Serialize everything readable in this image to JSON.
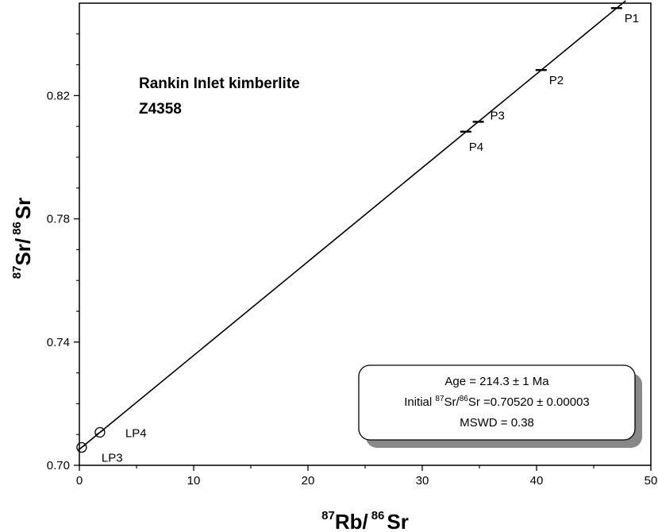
{
  "chart_data": {
    "type": "scatter",
    "title_lines": [
      "Rankin Inlet kimberlite",
      "Z4358"
    ],
    "xlabel": {
      "sup1": "87",
      "base1": "Rb/",
      "sup2": "86",
      "base2": "Sr"
    },
    "ylabel": {
      "sup1": "87",
      "base1": "Sr/",
      "sup2": "86",
      "base2": "Sr"
    },
    "xlim": [
      0,
      50
    ],
    "ylim": [
      0.7,
      0.85
    ],
    "x_ticks": [
      0,
      10,
      20,
      30,
      40,
      50
    ],
    "x_tick_labels": [
      "0",
      "10",
      "20",
      "30",
      "40",
      "50"
    ],
    "y_ticks": [
      0.7,
      0.74,
      0.78,
      0.82
    ],
    "y_tick_labels": [
      "0.70",
      "0.74",
      "0.78",
      "0.82"
    ],
    "grid": false,
    "isochron": {
      "x": [
        0,
        47.8
      ],
      "y": [
        0.7052,
        0.8508
      ]
    },
    "points": [
      {
        "label": "P1",
        "x": 47.0,
        "y": 0.8484,
        "marker": "bar"
      },
      {
        "label": "P2",
        "x": 40.4,
        "y": 0.8283,
        "marker": "bar"
      },
      {
        "label": "P3",
        "x": 34.9,
        "y": 0.8115,
        "marker": "bar"
      },
      {
        "label": "P4",
        "x": 33.8,
        "y": 0.8083,
        "marker": "bar"
      },
      {
        "label": "LP4",
        "x": 1.8,
        "y": 0.7107,
        "marker": "circle"
      },
      {
        "label": "LP3",
        "x": 0.2,
        "y": 0.7058,
        "marker": "circle"
      }
    ],
    "annotation": {
      "age_line": "Age = 214.3 ± 1 Ma",
      "initial": {
        "prefix": "Initial ",
        "sup1": "87",
        "mid": "Sr/",
        "sup2": "86",
        "suffix": "Sr =0.70520 ± 0.00003"
      },
      "mswd_line": "MSWD = 0.38",
      "placement": "bottom-right"
    }
  }
}
